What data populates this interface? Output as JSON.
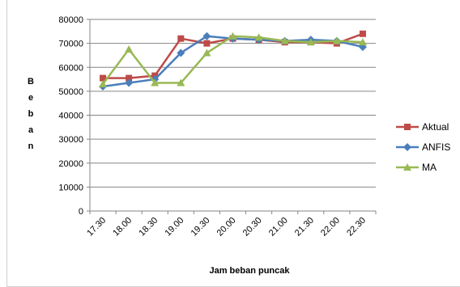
{
  "chart_data": {
    "type": "line",
    "title": "",
    "xlabel": "Jam beban puncak",
    "ylabel_letters": [
      "B",
      "e",
      "b",
      "a",
      "n"
    ],
    "categories": [
      "17.30",
      "18.00",
      "18.30",
      "19.00",
      "19.30",
      "20.00",
      "20.30",
      "21.00",
      "21.30",
      "22.00",
      "22.30"
    ],
    "ylim": [
      0,
      80000
    ],
    "yticks": [
      "0",
      "10000",
      "20000",
      "30000",
      "40000",
      "50000",
      "60000",
      "70000",
      "80000"
    ],
    "grid": "horizontal",
    "legend_position": "right",
    "series": [
      {
        "name": "Aktual",
        "color": "#be4b48",
        "marker": "square",
        "values": [
          55500,
          55500,
          56500,
          72000,
          70000,
          72000,
          71500,
          70500,
          70500,
          70000,
          74000
        ]
      },
      {
        "name": "ANFIS",
        "color": "#4a7ebb",
        "marker": "diamond",
        "values": [
          52000,
          53500,
          55000,
          66000,
          73000,
          72000,
          71500,
          71000,
          71500,
          71000,
          68500
        ]
      },
      {
        "name": "MA",
        "color": "#98b954",
        "marker": "triangle",
        "values": [
          53000,
          67500,
          53500,
          53500,
          66000,
          73000,
          72500,
          71000,
          70500,
          71000,
          70500
        ]
      }
    ]
  }
}
